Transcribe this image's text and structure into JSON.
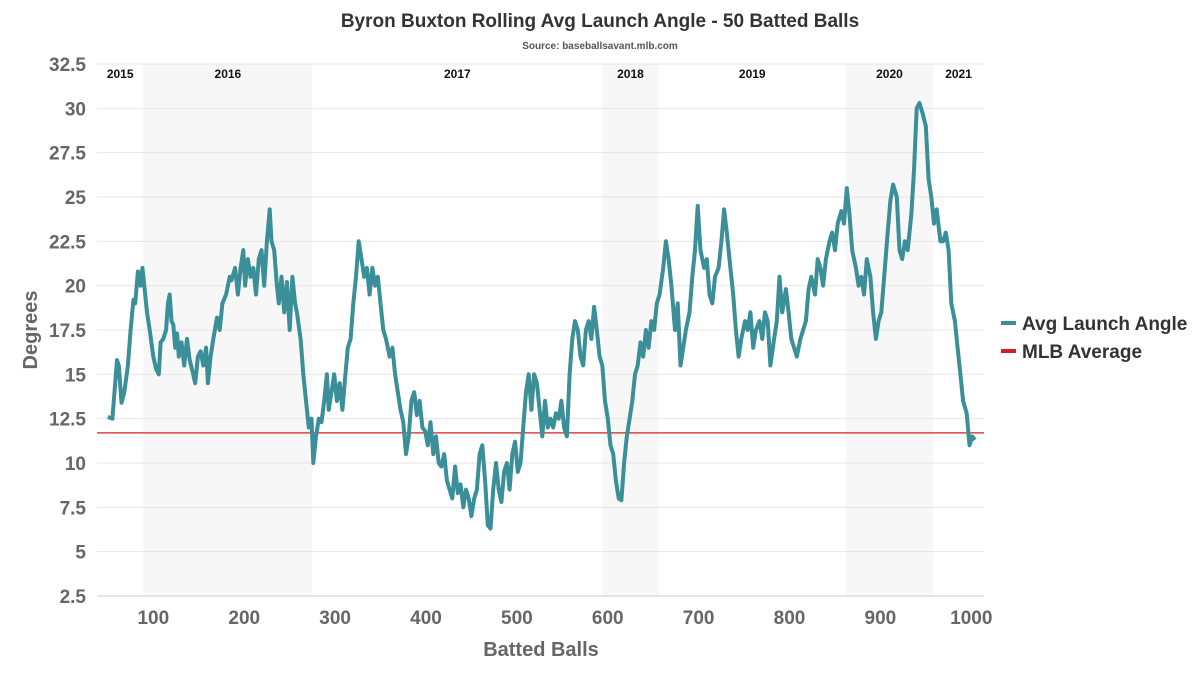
{
  "chart_data": {
    "type": "line",
    "title": "Byron Buxton Rolling Avg Launch Angle - 50 Batted Balls",
    "subtitle": "Source: baseballsavant.mlb.com",
    "xlabel": "Batted Balls",
    "ylabel": "Degrees",
    "xlim": [
      38,
      1014
    ],
    "ylim": [
      2.5,
      32.5
    ],
    "xticks": [
      100,
      200,
      300,
      400,
      500,
      600,
      700,
      800,
      900,
      1000
    ],
    "yticks": [
      2.5,
      5,
      7.5,
      10,
      12.5,
      15,
      17.5,
      20,
      22.5,
      25,
      27.5,
      30,
      32.5
    ],
    "ytick_labels": [
      "2.5",
      "5",
      "7.5",
      "10",
      "12.5",
      "15",
      "17.5",
      "20",
      "22.5",
      "25",
      "27.5",
      "30",
      "32.5"
    ],
    "grid": "horizontal",
    "legend_placement": "right",
    "seasons": [
      {
        "label": "2015",
        "start": 38,
        "end": 89,
        "shaded": false
      },
      {
        "label": "2016",
        "start": 89,
        "end": 275,
        "shaded": true
      },
      {
        "label": "2017",
        "start": 275,
        "end": 594,
        "shaded": false
      },
      {
        "label": "2018",
        "start": 594,
        "end": 656,
        "shaded": true
      },
      {
        "label": "2019",
        "start": 656,
        "end": 862,
        "shaded": false
      },
      {
        "label": "2020",
        "start": 862,
        "end": 958,
        "shaded": true
      },
      {
        "label": "2021",
        "start": 958,
        "end": 1014,
        "shaded": false
      }
    ],
    "series": [
      {
        "name": "Avg Launch Angle",
        "color": "#3a8f98",
        "x": [
          50,
          55,
          58,
          60,
          62,
          65,
          68,
          72,
          75,
          78,
          80,
          83,
          86,
          88,
          90,
          93,
          96,
          100,
          103,
          106,
          108,
          111,
          114,
          116,
          118,
          120,
          122,
          124,
          126,
          128,
          131,
          134,
          137,
          140,
          143,
          146,
          149,
          152,
          155,
          158,
          160,
          163,
          166,
          170,
          173,
          176,
          180,
          184,
          186,
          190,
          193,
          196,
          199,
          201,
          204,
          207,
          210,
          213,
          216,
          219,
          222,
          225,
          228,
          230,
          233,
          236,
          238,
          241,
          244,
          247,
          250,
          253,
          256,
          258,
          262,
          265,
          268,
          271,
          274,
          276,
          279,
          282,
          285,
          288,
          291,
          293,
          296,
          299,
          302,
          305,
          308,
          311,
          314,
          317,
          320,
          323,
          326,
          329,
          332,
          335,
          338,
          341,
          344,
          347,
          350,
          353,
          356,
          360,
          363,
          366,
          369,
          372,
          375,
          378,
          381,
          384,
          387,
          390,
          393,
          396,
          399,
          402,
          405,
          408,
          411,
          414,
          417,
          420,
          423,
          426,
          429,
          432,
          435,
          438,
          441,
          444,
          447,
          450,
          453,
          456,
          459,
          462,
          465,
          468,
          471,
          474,
          477,
          480,
          483,
          486,
          489,
          492,
          495,
          498,
          501,
          504,
          507,
          510,
          513,
          516,
          519,
          522,
          525,
          528,
          531,
          534,
          537,
          540,
          543,
          546,
          549,
          552,
          555,
          558,
          561,
          564,
          567,
          570,
          573,
          576,
          579,
          582,
          585,
          588,
          591,
          594,
          597,
          600,
          603,
          606,
          609,
          612,
          615,
          618,
          621,
          624,
          627,
          630,
          633,
          636,
          639,
          642,
          645,
          648,
          651,
          654,
          657,
          661,
          664,
          667,
          670,
          674,
          677,
          680,
          683,
          686,
          690,
          693,
          696,
          699,
          702,
          706,
          709,
          712,
          715,
          718,
          722,
          725,
          728,
          731,
          735,
          738,
          741,
          744,
          747,
          751,
          754,
          757,
          760,
          763,
          767,
          770,
          773,
          776,
          779,
          783,
          786,
          789,
          792,
          796,
          799,
          802,
          805,
          808,
          812,
          815,
          818,
          821,
          824,
          828,
          831,
          834,
          837,
          840,
          844,
          847,
          850,
          853,
          857,
          860,
          863,
          866,
          869,
          873,
          876,
          879,
          882,
          885,
          889,
          892,
          895,
          898,
          901,
          905,
          908,
          911,
          914,
          918,
          921,
          924,
          927,
          930,
          934,
          937,
          940,
          943,
          946,
          950,
          953,
          956,
          959,
          962,
          966,
          969,
          972,
          975,
          978,
          982,
          985,
          988,
          991,
          995,
          998,
          1001,
          1004
        ],
        "y": [
          12.6,
          12.5,
          14.5,
          15.8,
          15.5,
          13.4,
          14,
          15.5,
          17.5,
          19.2,
          19,
          20.8,
          20,
          21,
          20,
          18.5,
          17.5,
          16,
          15.3,
          15,
          16.8,
          17,
          17.5,
          19,
          19.5,
          18,
          17.8,
          16.5,
          17.3,
          16,
          16.8,
          15.5,
          17,
          15.8,
          15.2,
          14.5,
          16,
          16.3,
          15.5,
          16.5,
          14.5,
          16,
          17,
          18.2,
          17.5,
          19,
          19.5,
          20.5,
          20.3,
          21,
          19.5,
          21,
          22,
          20,
          21.5,
          20.5,
          21,
          19.5,
          21.5,
          22,
          20,
          22.5,
          24.3,
          22.5,
          22,
          20,
          19,
          20.5,
          18.5,
          20.2,
          17.5,
          20.5,
          19,
          18.5,
          17,
          15,
          13.5,
          12,
          12.5,
          10,
          11.5,
          12.5,
          12.3,
          13.5,
          15,
          13,
          14,
          15,
          13.5,
          14.5,
          13,
          14.8,
          16.5,
          17,
          19,
          20.5,
          22.5,
          21.5,
          20.5,
          21,
          19.5,
          21,
          20,
          20.5,
          19,
          17.5,
          17,
          16,
          16.5,
          15,
          14,
          13,
          12.3,
          10.5,
          11.5,
          13.5,
          14,
          12.7,
          13.5,
          12,
          11.8,
          11,
          12.3,
          10.5,
          11.5,
          10,
          9.8,
          10.5,
          9,
          8.5,
          8,
          9.8,
          8.3,
          8.8,
          7.5,
          8.5,
          8,
          7,
          8,
          8.5,
          10.5,
          11,
          9,
          6.5,
          6.3,
          8.5,
          10,
          8.5,
          7.8,
          9.5,
          10,
          8.5,
          10.5,
          11.2,
          9.5,
          10,
          12,
          14,
          15,
          13,
          15,
          14.5,
          13,
          11.5,
          13.5,
          12,
          12.5,
          12,
          12.8,
          12.5,
          13.5,
          12,
          11.5,
          15,
          17,
          18,
          17.5,
          16,
          15.5,
          17.5,
          18,
          17,
          18.8,
          17.5,
          16,
          15.5,
          13.5,
          12.5,
          11,
          10.5,
          9,
          8,
          7.9,
          10,
          11.5,
          12.5,
          13.5,
          15,
          15.5,
          16.8,
          16,
          17.5,
          16.5,
          18,
          17.5,
          19,
          19.5,
          21,
          22.5,
          21.5,
          20,
          17.5,
          19,
          15.5,
          16.5,
          17.5,
          18.5,
          20.5,
          22,
          24.5,
          22,
          21,
          21.5,
          19.5,
          19,
          20.5,
          21,
          22.5,
          24.3,
          23,
          21,
          19.5,
          17.5,
          16,
          17,
          18,
          17.5,
          18.5,
          16.5,
          17.5,
          18,
          17,
          18.5,
          18,
          15.5,
          17,
          18,
          20.5,
          18.5,
          19.8,
          18.5,
          17,
          16.5,
          16,
          17,
          17.5,
          18,
          19.8,
          20.5,
          19.5,
          21.5,
          21,
          20,
          21.5,
          22.5,
          23,
          22,
          23.5,
          24.2,
          23.5,
          25.5,
          24,
          22,
          21,
          20,
          20.5,
          19.5,
          21.5,
          20.5,
          18.5,
          17,
          18,
          18.5,
          21,
          23,
          24.8,
          25.7,
          25,
          22,
          21.5,
          22.5,
          22,
          24,
          26.5,
          30,
          30.3,
          29.8,
          29,
          26,
          25,
          23.5,
          24.3,
          22.5,
          22.5,
          23,
          22,
          19,
          18,
          16.5,
          15,
          13.5,
          12.8,
          11,
          11.5,
          11.3
        ]
      },
      {
        "name": "MLB Average",
        "color": "#d62020",
        "value": 11.7
      }
    ]
  },
  "colors": {
    "shade": "#f7f7f7",
    "grid": "#e6e6e6"
  }
}
